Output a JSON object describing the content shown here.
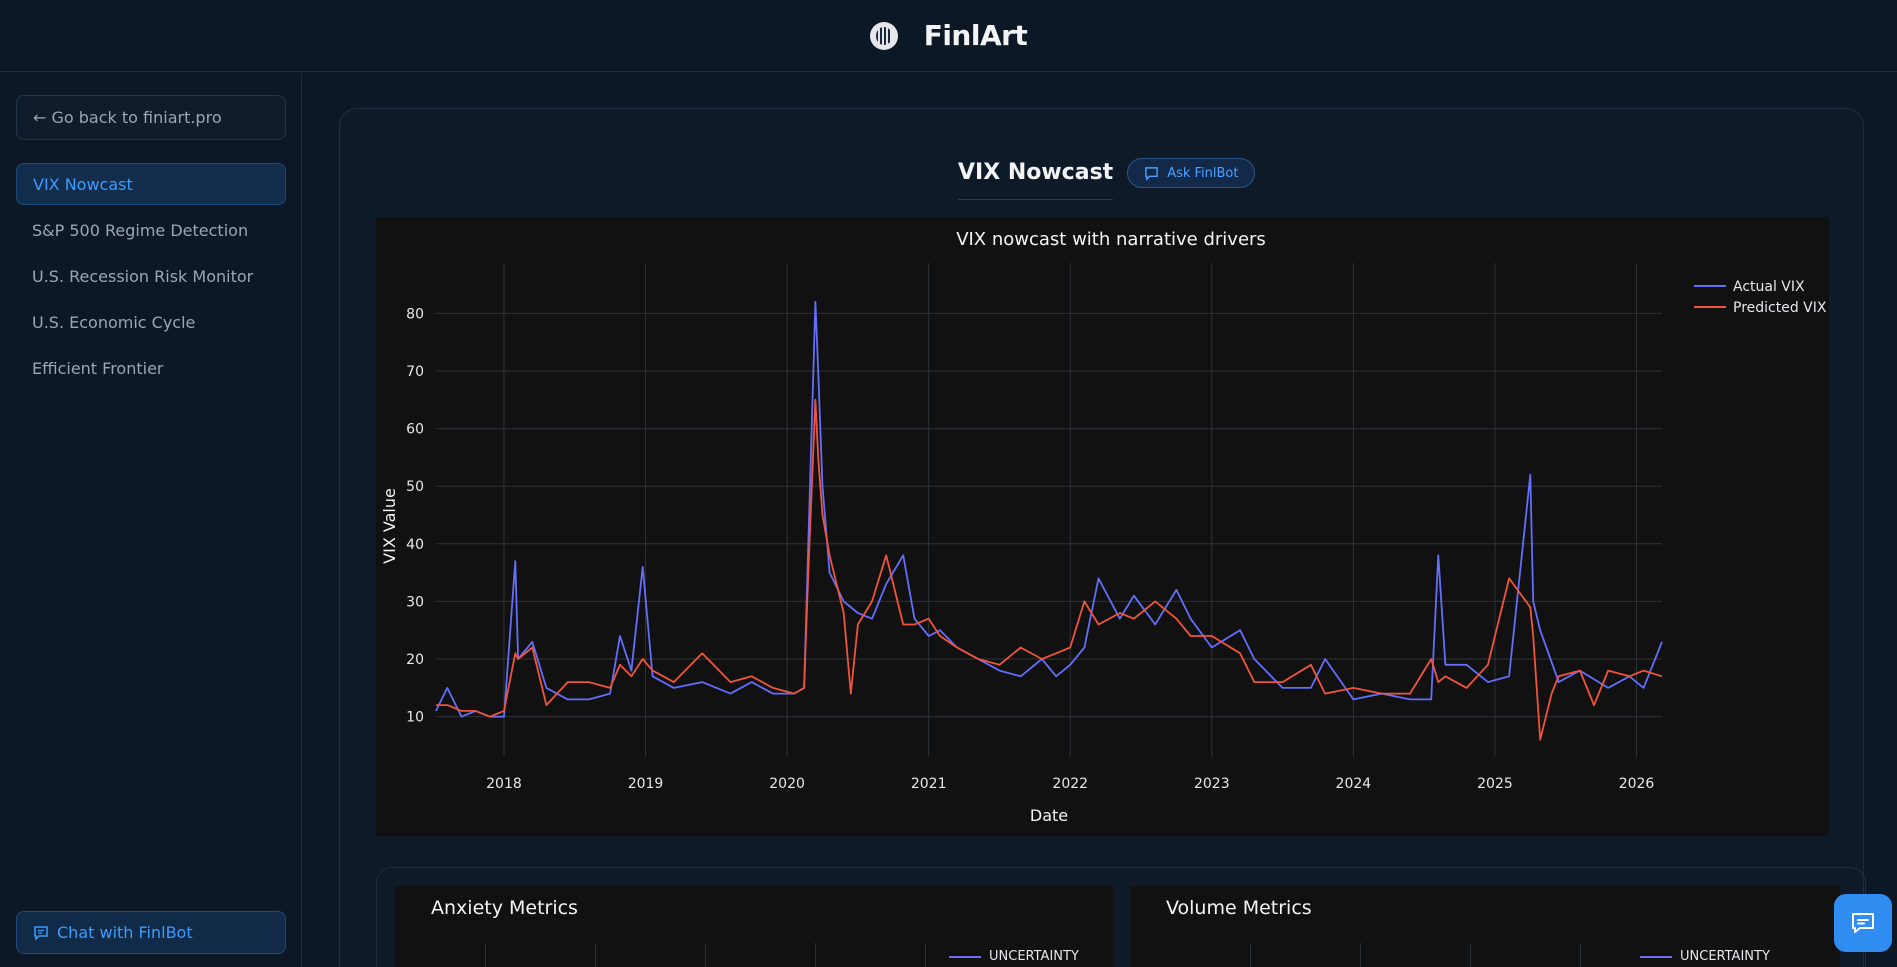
{
  "header": {
    "brand": "FinlArt",
    "logo": "finlart-logo-icon"
  },
  "sidebar": {
    "back_label": "← Go back to finiart.pro",
    "items": [
      {
        "label": "VIX Nowcast",
        "active": true
      },
      {
        "label": "S&P 500 Regime Detection",
        "active": false
      },
      {
        "label": "U.S. Recession Risk Monitor",
        "active": false
      },
      {
        "label": "U.S. Economic Cycle",
        "active": false
      },
      {
        "label": "Efficient Frontier",
        "active": false
      }
    ],
    "chat_label": "Chat with FinlBot"
  },
  "main": {
    "title": "VIX Nowcast",
    "ask_label": "Ask FinlBot"
  },
  "colors": {
    "actual": "#636efa",
    "predicted": "#ef553b",
    "accent": "#3b9cff",
    "background": "#0d1826",
    "plot_bg": "#111111"
  },
  "chart_data": {
    "type": "line",
    "title": "VIX nowcast with narrative drivers",
    "xlabel": "Date",
    "ylabel": "VIX Value",
    "x_ticks": [
      "2018",
      "2019",
      "2020",
      "2021",
      "2022",
      "2023",
      "2024",
      "2025",
      "2026"
    ],
    "y_ticks": [
      10,
      20,
      30,
      40,
      50,
      60,
      70,
      80
    ],
    "xlim": [
      2017.52,
      2026.18
    ],
    "ylim": [
      3,
      87
    ],
    "grid": true,
    "legend_position": "top-right",
    "series": [
      {
        "name": "Actual VIX",
        "color": "#636efa",
        "x": [
          2017.52,
          2017.6,
          2017.7,
          2017.8,
          2017.9,
          2018.0,
          2018.08,
          2018.1,
          2018.2,
          2018.3,
          2018.45,
          2018.6,
          2018.75,
          2018.82,
          2018.9,
          2018.98,
          2019.05,
          2019.2,
          2019.4,
          2019.6,
          2019.75,
          2019.9,
          2020.05,
          2020.12,
          2020.15,
          2020.2,
          2020.22,
          2020.25,
          2020.3,
          2020.4,
          2020.5,
          2020.6,
          2020.7,
          2020.82,
          2020.9,
          2021.0,
          2021.08,
          2021.2,
          2021.35,
          2021.5,
          2021.65,
          2021.8,
          2021.9,
          2022.0,
          2022.1,
          2022.2,
          2022.35,
          2022.45,
          2022.6,
          2022.75,
          2022.85,
          2023.0,
          2023.2,
          2023.3,
          2023.5,
          2023.7,
          2023.8,
          2024.0,
          2024.2,
          2024.4,
          2024.55,
          2024.6,
          2024.65,
          2024.8,
          2024.95,
          2025.1,
          2025.25,
          2025.27,
          2025.32,
          2025.45,
          2025.6,
          2025.8,
          2025.95,
          2026.05,
          2026.18
        ],
        "y": [
          11,
          15,
          10,
          11,
          10,
          10,
          37,
          20,
          23,
          15,
          13,
          13,
          14,
          24,
          18,
          36,
          17,
          15,
          16,
          14,
          16,
          14,
          14,
          15,
          40,
          82,
          70,
          50,
          35,
          30,
          28,
          27,
          33,
          38,
          27,
          24,
          25,
          22,
          20,
          18,
          17,
          20,
          17,
          19,
          22,
          34,
          27,
          31,
          26,
          32,
          27,
          22,
          25,
          20,
          15,
          15,
          20,
          13,
          14,
          13,
          13,
          38,
          19,
          19,
          16,
          17,
          52,
          30,
          25,
          16,
          18,
          15,
          17,
          15,
          23
        ]
      },
      {
        "name": "Predicted VIX",
        "color": "#ef553b",
        "x": [
          2017.52,
          2017.6,
          2017.7,
          2017.8,
          2017.9,
          2018.0,
          2018.08,
          2018.1,
          2018.2,
          2018.3,
          2018.45,
          2018.6,
          2018.75,
          2018.82,
          2018.9,
          2018.98,
          2019.05,
          2019.2,
          2019.4,
          2019.6,
          2019.75,
          2019.9,
          2020.05,
          2020.12,
          2020.15,
          2020.2,
          2020.22,
          2020.25,
          2020.3,
          2020.4,
          2020.45,
          2020.5,
          2020.6,
          2020.7,
          2020.82,
          2020.9,
          2021.0,
          2021.08,
          2021.2,
          2021.35,
          2021.5,
          2021.65,
          2021.8,
          2021.9,
          2022.0,
          2022.1,
          2022.2,
          2022.35,
          2022.45,
          2022.6,
          2022.75,
          2022.85,
          2023.0,
          2023.2,
          2023.3,
          2023.5,
          2023.7,
          2023.8,
          2024.0,
          2024.2,
          2024.4,
          2024.55,
          2024.6,
          2024.65,
          2024.8,
          2024.95,
          2025.1,
          2025.25,
          2025.27,
          2025.32,
          2025.4,
          2025.45,
          2025.6,
          2025.7,
          2025.8,
          2025.95,
          2026.05,
          2026.18
        ],
        "y": [
          12,
          12,
          11,
          11,
          10,
          11,
          21,
          20,
          22,
          12,
          16,
          16,
          15,
          19,
          17,
          20,
          18,
          16,
          21,
          16,
          17,
          15,
          14,
          15,
          35,
          65,
          55,
          45,
          38,
          28,
          14,
          26,
          30,
          38,
          26,
          26,
          27,
          24,
          22,
          20,
          19,
          22,
          20,
          21,
          22,
          30,
          26,
          28,
          27,
          30,
          27,
          24,
          24,
          21,
          16,
          16,
          19,
          14,
          15,
          14,
          14,
          20,
          16,
          17,
          15,
          19,
          34,
          29,
          24,
          6,
          14,
          17,
          18,
          12,
          18,
          17,
          18,
          17
        ]
      }
    ]
  },
  "sub_panels": [
    {
      "title": "Anxiety Metrics",
      "legend": "UNCERTAINTY"
    },
    {
      "title": "Volume Metrics",
      "legend": "UNCERTAINTY"
    }
  ]
}
